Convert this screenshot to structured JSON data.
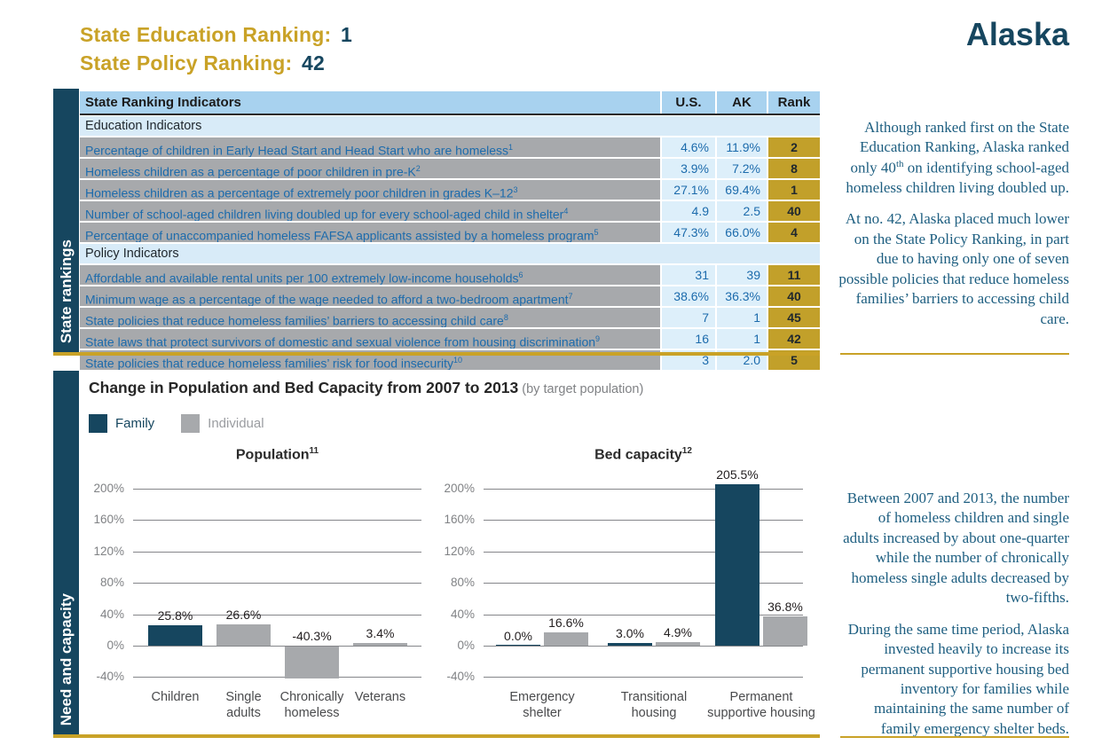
{
  "header": {
    "education_label": "State Education Ranking:",
    "education_value": "1",
    "policy_label": "State Policy Ranking:",
    "policy_value": "42",
    "state_name": "Alaska"
  },
  "sections": {
    "rankings_label": "State rankings",
    "capacity_label": "Need and capacity"
  },
  "ranking_table": {
    "header": {
      "indicator": "State Ranking Indicators",
      "us": "U.S.",
      "ak": "AK",
      "rank": "Rank"
    },
    "sections": [
      {
        "title": "Education Indicators",
        "rows": [
          {
            "label": "Percentage of children in Early Head Start and Head Start who are homeless",
            "sup": "1",
            "us": "4.6%",
            "ak": "11.9%",
            "rank": "2"
          },
          {
            "label": "Homeless children as a percentage of poor children in pre-K",
            "sup": "2",
            "us": "3.9%",
            "ak": "7.2%",
            "rank": "8"
          },
          {
            "label": "Homeless children as a percentage of extremely poor children in grades K–12",
            "sup": "3",
            "us": "27.1%",
            "ak": "69.4%",
            "rank": "1"
          },
          {
            "label": "Number of school-aged children living doubled up for every school-aged child in shelter",
            "sup": "4",
            "us": "4.9",
            "ak": "2.5",
            "rank": "40"
          },
          {
            "label": "Percentage of unaccompanied homeless FAFSA applicants assisted by a homeless program",
            "sup": "5",
            "us": "47.3%",
            "ak": "66.0%",
            "rank": "4"
          }
        ]
      },
      {
        "title": "Policy Indicators",
        "rows": [
          {
            "label": "Affordable and available rental units per 100 extremely low-income households",
            "sup": "6",
            "us": "31",
            "ak": "39",
            "rank": "11"
          },
          {
            "label": "Minimum wage as a percentage of the wage needed to afford a two-bedroom apartment",
            "sup": "7",
            "us": "38.6%",
            "ak": "36.3%",
            "rank": "40"
          },
          {
            "label": "State policies that reduce homeless families’ barriers to accessing child care",
            "sup": "8",
            "us": "7",
            "ak": "1",
            "rank": "45"
          },
          {
            "label": "State laws that protect survivors of domestic and sexual violence from housing discrimination",
            "sup": "9",
            "us": "16",
            "ak": "1",
            "rank": "42"
          },
          {
            "label": "State policies that reduce homeless families’ risk for food insecurity",
            "sup": "10",
            "us": "3",
            "ak": "2.0",
            "rank": "5"
          }
        ]
      }
    ]
  },
  "notes": [
    {
      "paragraphs": [
        [
          {
            "text": "Although ranked first on the State Education Ranking, Alaska ranked only 40"
          },
          {
            "text": "th",
            "sup": true
          },
          {
            "text": " on identifying school-aged homeless children living doubled up."
          }
        ],
        [
          {
            "text": "At no. 42, Alaska placed much lower on the State Policy Ranking, in part due to having only one of seven possible policies that reduce homeless families’ barriers to accessing child care."
          }
        ]
      ]
    },
    {
      "paragraphs": [
        [
          {
            "text": "Between 2007 and 2013, the number of homeless children and single adults increased by about one-quarter while the number of chronically homeless single adults decreased by two-fifths."
          }
        ],
        [
          {
            "text": "During the same time period, Alaska invested heavily to increase its permanent supportive housing bed inventory for families while maintaining the same number of family emergency shelter beds."
          }
        ]
      ]
    }
  ],
  "capacity_section": {
    "title": "Change in Population and Bed Capacity from 2007 to 2013",
    "subtitle": "(by target population)",
    "legend": [
      {
        "label": "Family",
        "color": "#16465F"
      },
      {
        "label": "Individual",
        "color": "#A7A9AC"
      }
    ]
  },
  "chart_data": [
    {
      "type": "bar",
      "title": "Population",
      "title_superscript": "11",
      "categories": [
        "Children",
        "Single adults",
        "Chronically homeless",
        "Veterans"
      ],
      "category_label_lines": [
        [
          "Children"
        ],
        [
          "Single",
          "adults"
        ],
        [
          "Chronically",
          "homeless"
        ],
        [
          "Veterans"
        ]
      ],
      "series_per_bar": [
        "Family",
        "Individual",
        "Individual",
        "Individual"
      ],
      "values": [
        25.8,
        26.6,
        -40.3,
        3.4
      ],
      "value_labels": [
        "25.8%",
        "26.6%",
        "-40.3%",
        "3.4%"
      ],
      "ylim": [
        -40,
        200
      ],
      "y_ticks": [
        200,
        160,
        120,
        80,
        40,
        0,
        -40
      ],
      "y_tick_labels": [
        "200%",
        "160%",
        "120%",
        "80%",
        "40%",
        "0%",
        "-40%"
      ],
      "grid": true,
      "legend_position": "top-left"
    },
    {
      "type": "bar",
      "title": "Bed capacity",
      "title_superscript": "12",
      "categories": [
        "Emergency shelter",
        "Transitional housing",
        "Permanent supportive housing"
      ],
      "category_label_lines": [
        [
          "Emergency",
          "shelter"
        ],
        [
          "Transitional",
          "housing"
        ],
        [
          "Permanent",
          "supportive housing"
        ]
      ],
      "series": [
        {
          "name": "Family",
          "values": [
            0.0,
            3.0,
            205.5
          ],
          "labels": [
            "0.0%",
            "3.0%",
            "205.5%"
          ]
        },
        {
          "name": "Individual",
          "values": [
            16.6,
            4.9,
            36.8
          ],
          "labels": [
            "16.6%",
            "4.9%",
            "36.8%"
          ]
        }
      ],
      "ylim": [
        -40,
        200
      ],
      "y_ticks": [
        200,
        160,
        120,
        80,
        40,
        0,
        -40
      ],
      "y_tick_labels": [
        "200%",
        "160%",
        "120%",
        "80%",
        "40%",
        "0%",
        "-40%"
      ],
      "grid": true,
      "legend_position": "top-left"
    }
  ],
  "colors": {
    "dark_teal": "#16465F",
    "gold": "#C9A227",
    "rank_cell_gold": "#C2A02A",
    "table_header_blue": "#A8D2EF",
    "band_blue": "#D8EBF8",
    "indicator_cell_gray": "#A7A9AC",
    "value_cell_blue": "#DDEFFA",
    "table_text_blue": "#1C6BAC",
    "note_serif_teal": "#1D5E80",
    "bar_family": "#16465F",
    "bar_individual": "#A7A9AC",
    "axis_gray": "#808285"
  }
}
